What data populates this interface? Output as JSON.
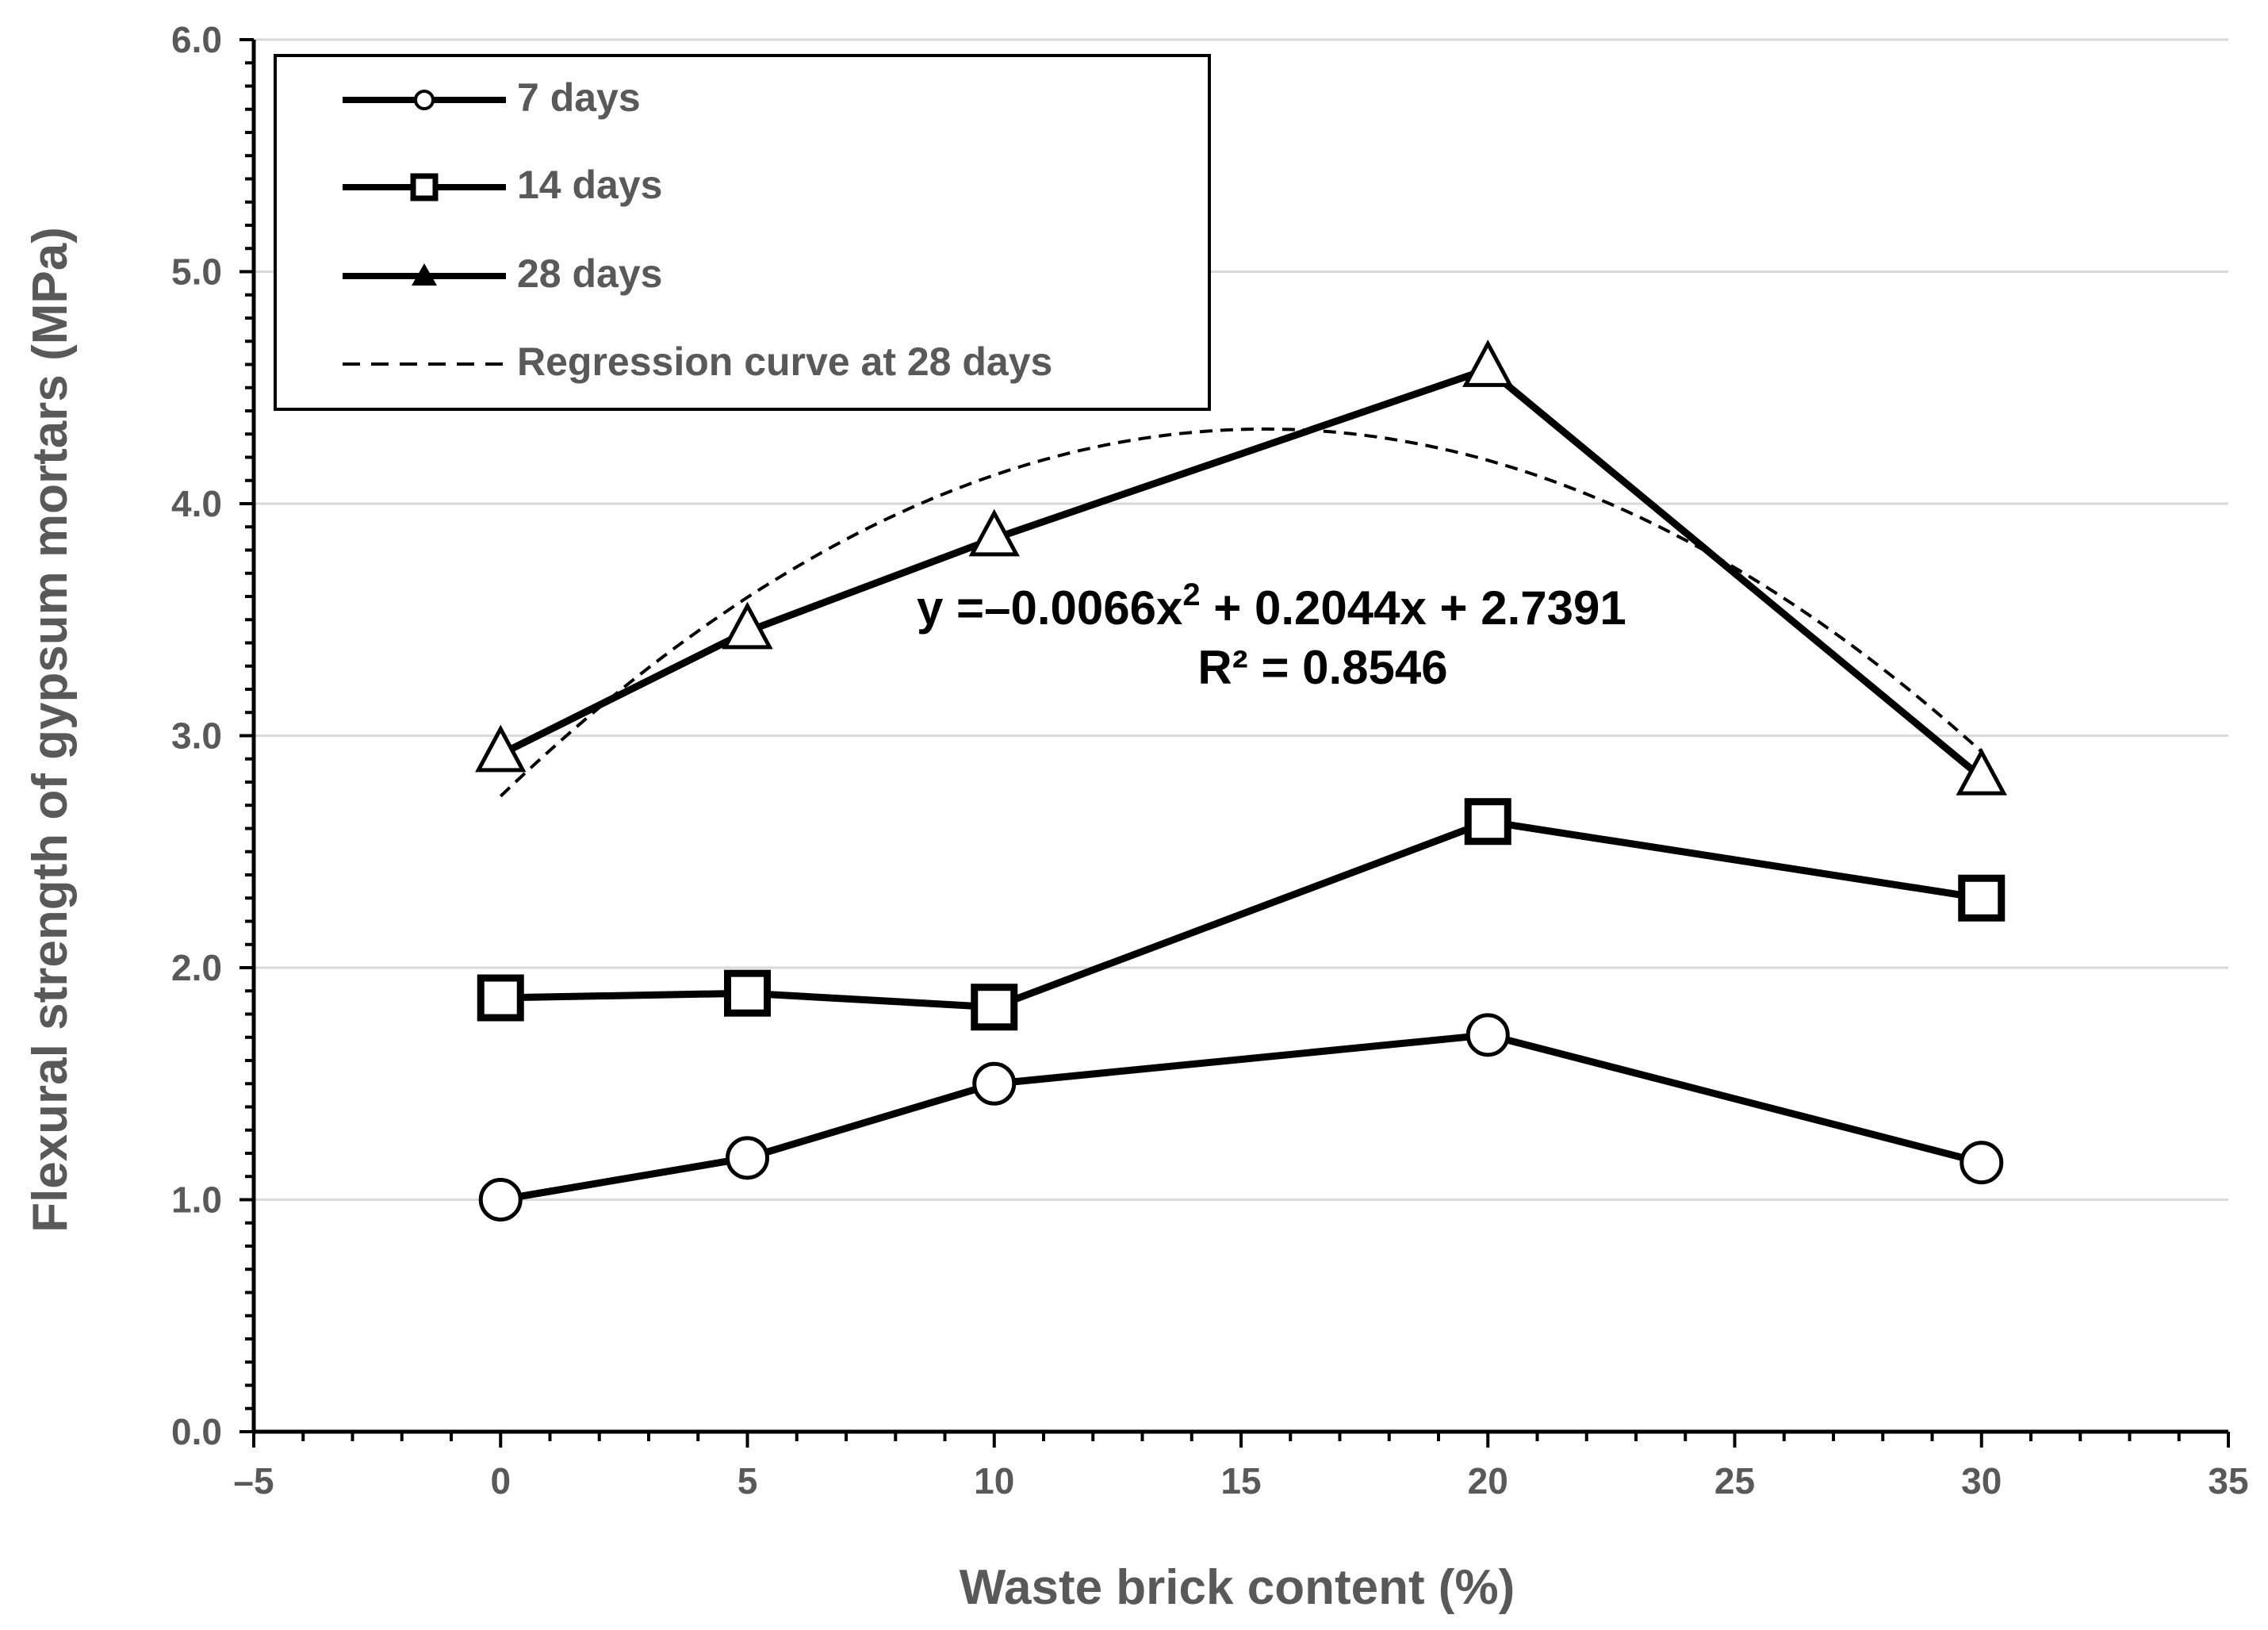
{
  "chart_data": {
    "type": "line",
    "xlabel": "Waste brick content (%)",
    "ylabel": "Flexural strength of gypsum mortars (MPa)",
    "xlim": [
      -5,
      35
    ],
    "ylim": [
      0,
      6
    ],
    "x_ticks": [
      -5,
      0,
      5,
      10,
      15,
      20,
      25,
      30,
      35
    ],
    "x_tick_labels": [
      "–5",
      "0",
      "5",
      "10",
      "15",
      "20",
      "25",
      "30",
      "35"
    ],
    "y_ticks": [
      0,
      1,
      2,
      3,
      4,
      5,
      6
    ],
    "y_tick_labels": [
      "0.0",
      "1.0",
      "2.0",
      "3.0",
      "4.0",
      "5.0",
      "6.0"
    ],
    "grid": "horizontal",
    "legend_position": "top-left",
    "series": [
      {
        "name": "7 days",
        "marker": "circle",
        "x": [
          0,
          5,
          10,
          20,
          30
        ],
        "values": [
          1.0,
          1.18,
          1.5,
          1.71,
          1.16
        ]
      },
      {
        "name": "14 days",
        "marker": "square",
        "x": [
          0,
          5,
          10,
          20,
          30
        ],
        "values": [
          1.87,
          1.89,
          1.83,
          2.63,
          2.3
        ]
      },
      {
        "name": "28 days",
        "marker": "triangle",
        "x": [
          0,
          5,
          10,
          20,
          30
        ],
        "values": [
          2.92,
          3.45,
          3.85,
          4.58,
          2.82
        ]
      }
    ],
    "regression": {
      "name": "Regression curve at 28 days",
      "coefficients": {
        "a": -0.0066,
        "b": 0.2044,
        "c": 2.7391
      },
      "equation_prefix": "y =–0.0066x",
      "equation_exponent": "2",
      "equation_suffix": " + 0.2044x + 2.7391",
      "r_squared_label": "R² = 0.8546"
    }
  },
  "colors": {
    "series_line": "#000000",
    "grid": "#d9d9d9",
    "axis": "#000000",
    "text": "#595959"
  }
}
